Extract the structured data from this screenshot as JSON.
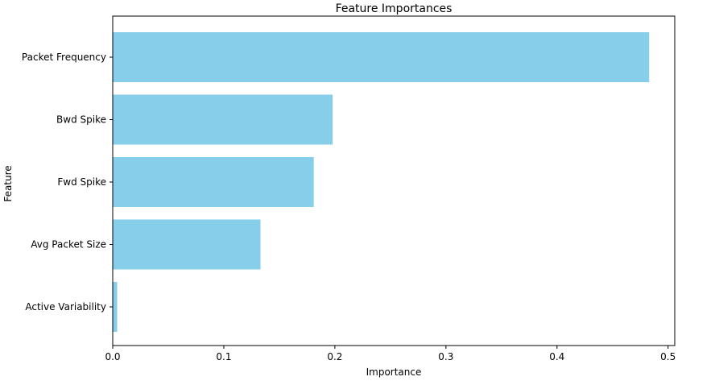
{
  "chart_data": {
    "type": "bar",
    "orientation": "horizontal",
    "title": "Feature Importances",
    "xlabel": "Importance",
    "ylabel": "Feature",
    "categories": [
      "Packet Frequency",
      "Bwd Spike",
      "Fwd Spike",
      "Avg Packet Size",
      "Active Variability"
    ],
    "values": [
      0.483,
      0.198,
      0.181,
      0.133,
      0.004
    ],
    "xlim": [
      0,
      0.506
    ],
    "xticks": [
      0.0,
      0.1,
      0.2,
      0.3,
      0.4,
      0.5
    ],
    "xtick_labels": [
      "0.0",
      "0.1",
      "0.2",
      "0.3",
      "0.4",
      "0.5"
    ],
    "grid": false,
    "bar_color": "#87ceeb"
  }
}
